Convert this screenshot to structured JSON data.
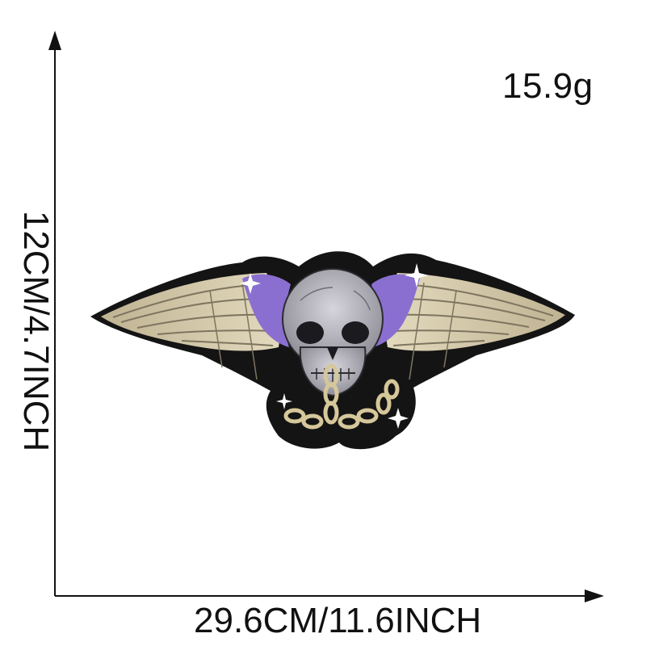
{
  "weight_label": "15.9g",
  "width_label": "29.6CM/11.6INCH",
  "height_label": "12CM/4.7INCH",
  "colors": {
    "background": "#ffffff",
    "axis": "#111111",
    "patch_border": "#141414",
    "wing_gold": "#cfc3a0",
    "wing_shadow": "#7d7560",
    "purple_accent": "#8a6fd0",
    "skull": "#b9b8c0",
    "chain_gold": "#d6c79a"
  },
  "patch": {
    "subject": "winged skull with chain",
    "icons": [
      "skull-icon",
      "wing-icon",
      "chain-icon",
      "sparkle-icon"
    ]
  }
}
